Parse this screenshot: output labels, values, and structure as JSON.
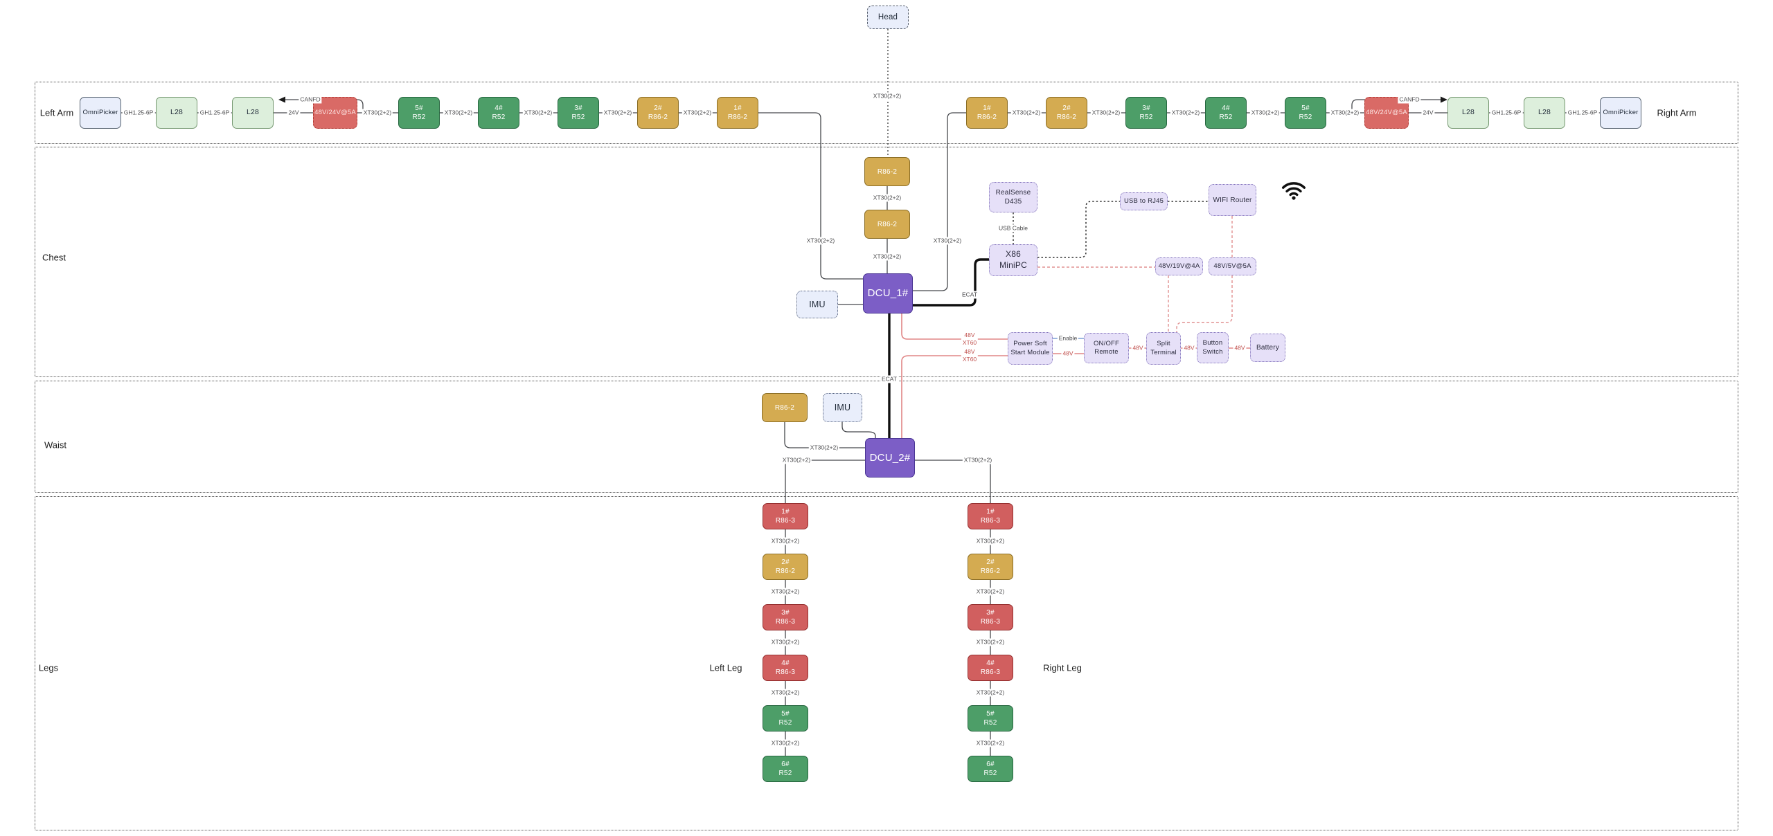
{
  "title": "Robot hardware wiring diagram",
  "palette": {
    "kinds": {
      "green": {
        "bg": "#4d9e68",
        "border": "#26663f",
        "text": "#ffffff"
      },
      "gold": {
        "bg": "#d4ab51",
        "border": "#8a6d25",
        "text": "#ffffff"
      },
      "red": {
        "bg": "#d15f5f",
        "border": "#952f2f",
        "text": "#ffffff"
      },
      "reddash": {
        "bg": "#d96a66",
        "border": "#b03a34",
        "text": "#fde8e6"
      },
      "purple": {
        "bg": "#7c5ec6",
        "border": "#4b3694",
        "text": "#ffffff"
      },
      "lgreen": {
        "bg": "#ddefdc",
        "border": "#74976f",
        "text": "#1f2937"
      },
      "lblue": {
        "bg": "#e9eefb",
        "border": "#54606e",
        "text": "#1f2937"
      },
      "lav": {
        "bg": "#e6e0f8",
        "border": "#7e6eb8",
        "text": "#2b2b3d"
      }
    },
    "lines": {
      "default": "#46484c",
      "thick_ecat": "#101010",
      "power_red": "#e08585",
      "red_label_text": "#c0504d",
      "enable_blue": "#7d9fd6",
      "dotted_data": "#333333"
    }
  },
  "labels": [
    {
      "id": "left-arm",
      "text": "Left Arm"
    },
    {
      "id": "right-arm",
      "text": "Right Arm"
    },
    {
      "id": "chest",
      "text": "Chest"
    },
    {
      "id": "waist",
      "text": "Waist"
    },
    {
      "id": "legs",
      "text": "Legs"
    },
    {
      "id": "left-leg",
      "text": "Left Leg"
    },
    {
      "id": "right-leg",
      "text": "Right Leg"
    }
  ],
  "nodes": [
    {
      "id": "head",
      "label": "Head"
    },
    {
      "id": "omnipicker-l",
      "label": "OmniPicker"
    },
    {
      "id": "l28-l1",
      "label": "L28"
    },
    {
      "id": "l28-l2",
      "label": "L28"
    },
    {
      "id": "conv24-l",
      "label": "48V/24V@5A"
    },
    {
      "id": "r52-l5",
      "label": "5#\nR52"
    },
    {
      "id": "r52-l4",
      "label": "4#\nR52"
    },
    {
      "id": "r52-l3",
      "label": "3#\nR52"
    },
    {
      "id": "r86-l2",
      "label": "2#\nR86-2"
    },
    {
      "id": "r86-l1",
      "label": "1#\nR86-2"
    },
    {
      "id": "r86-r1",
      "label": "1#\nR86-2"
    },
    {
      "id": "r86-r2",
      "label": "2#\nR86-2"
    },
    {
      "id": "r52-r3",
      "label": "3#\nR52"
    },
    {
      "id": "r52-r4",
      "label": "4#\nR52"
    },
    {
      "id": "r52-r5",
      "label": "5#\nR52"
    },
    {
      "id": "conv24-r",
      "label": "48V/24V@5A"
    },
    {
      "id": "l28-r1",
      "label": "L28"
    },
    {
      "id": "l28-r2",
      "label": "L28"
    },
    {
      "id": "omnipicker-r",
      "label": "OmniPicker"
    },
    {
      "id": "r86-c1",
      "label": "R86-2"
    },
    {
      "id": "r86-c2",
      "label": "R86-2"
    },
    {
      "id": "dcu1",
      "label": "DCU_1#"
    },
    {
      "id": "imu-chest",
      "label": "IMU"
    },
    {
      "id": "realsense",
      "label": "RealSense\nD435"
    },
    {
      "id": "x86",
      "label": "X86\nMiniPC"
    },
    {
      "id": "usb2rj45",
      "label": "USB to RJ45"
    },
    {
      "id": "wifirouter",
      "label": "WIFI Router"
    },
    {
      "id": "conv19",
      "label": "48V/19V@4A"
    },
    {
      "id": "conv5",
      "label": "48V/5V@5A"
    },
    {
      "id": "psm",
      "label": "Power Soft\nStart Module"
    },
    {
      "id": "onoff",
      "label": "ON/OFF\nRemote"
    },
    {
      "id": "split",
      "label": "Split\nTerminal"
    },
    {
      "id": "btnswitch",
      "label": "Button\nSwitch"
    },
    {
      "id": "battery",
      "label": "Battery"
    },
    {
      "id": "r86-w",
      "label": "R86-2"
    },
    {
      "id": "imu-waist",
      "label": "IMU"
    },
    {
      "id": "dcu2",
      "label": "DCU_2#"
    },
    {
      "id": "ll1",
      "label": "1#\nR86-3"
    },
    {
      "id": "ll2",
      "label": "2#\nR86-2"
    },
    {
      "id": "ll3",
      "label": "3#\nR86-3"
    },
    {
      "id": "ll4",
      "label": "4#\nR86-3"
    },
    {
      "id": "ll5",
      "label": "5#\nR52"
    },
    {
      "id": "ll6",
      "label": "6#\nR52"
    },
    {
      "id": "rl1",
      "label": "1#\nR86-3"
    },
    {
      "id": "rl2",
      "label": "2#\nR86-2"
    },
    {
      "id": "rl3",
      "label": "3#\nR86-3"
    },
    {
      "id": "rl4",
      "label": "4#\nR86-3"
    },
    {
      "id": "rl5",
      "label": "5#\nR52"
    },
    {
      "id": "rl6",
      "label": "6#\nR52"
    }
  ],
  "edge_labels": [
    {
      "id": "a1",
      "text": "GH1.25-6P"
    },
    {
      "id": "a2",
      "text": "GH1.25-6P"
    },
    {
      "id": "a3",
      "text": "24V"
    },
    {
      "id": "a4",
      "text": "XT30(2+2)"
    },
    {
      "id": "a5",
      "text": "XT30(2+2)"
    },
    {
      "id": "a6",
      "text": "XT30(2+2)"
    },
    {
      "id": "a7",
      "text": "XT30(2+2)"
    },
    {
      "id": "a8",
      "text": "XT30(2+2)"
    },
    {
      "id": "canfdl",
      "text": "CANFD"
    },
    {
      "id": "b1",
      "text": "XT30(2+2)"
    },
    {
      "id": "b2",
      "text": "XT30(2+2)"
    },
    {
      "id": "b3",
      "text": "XT30(2+2)"
    },
    {
      "id": "b4",
      "text": "XT30(2+2)"
    },
    {
      "id": "b5",
      "text": "XT30(2+2)"
    },
    {
      "id": "b6",
      "text": "24V"
    },
    {
      "id": "b7",
      "text": "GH1.25-6P"
    },
    {
      "id": "b8",
      "text": "GH1.25-6P"
    },
    {
      "id": "canfdr",
      "text": "CANFD"
    },
    {
      "id": "headxt",
      "text": "XT30(2+2)"
    },
    {
      "id": "c1",
      "text": "XT30(2+2)"
    },
    {
      "id": "c2",
      "text": "XT30(2+2)"
    },
    {
      "id": "fl",
      "text": "XT30(2+2)"
    },
    {
      "id": "fr",
      "text": "XT30(2+2)"
    },
    {
      "id": "ecat1",
      "text": "ECAT"
    },
    {
      "id": "ecat2",
      "text": "ECAT"
    },
    {
      "id": "usbcable",
      "text": "USB Cable"
    },
    {
      "id": "ra",
      "text": "48V\nXT60",
      "tone": "red"
    },
    {
      "id": "rb",
      "text": "48V\nXT60",
      "tone": "red"
    },
    {
      "id": "enable",
      "text": "Enable"
    },
    {
      "id": "p1",
      "text": "48V",
      "tone": "red"
    },
    {
      "id": "p2",
      "text": "48V",
      "tone": "red"
    },
    {
      "id": "p3",
      "text": "48V",
      "tone": "red"
    },
    {
      "id": "p4",
      "text": "48V",
      "tone": "red"
    },
    {
      "id": "w1",
      "text": "XT30(2+2)"
    },
    {
      "id": "w2",
      "text": "XT30(2+2)"
    },
    {
      "id": "w3",
      "text": "XT30(2+2)"
    },
    {
      "id": "lg1",
      "text": "XT30(2+2)"
    },
    {
      "id": "lg2",
      "text": "XT30(2+2)"
    },
    {
      "id": "lg3",
      "text": "XT30(2+2)"
    },
    {
      "id": "lg4",
      "text": "XT30(2+2)"
    },
    {
      "id": "lg5",
      "text": "XT30(2+2)"
    },
    {
      "id": "rg1",
      "text": "XT30(2+2)"
    },
    {
      "id": "rg2",
      "text": "XT30(2+2)"
    },
    {
      "id": "rg3",
      "text": "XT30(2+2)"
    },
    {
      "id": "rg4",
      "text": "XT30(2+2)"
    },
    {
      "id": "rg5",
      "text": "XT30(2+2)"
    }
  ],
  "icons": {
    "wifi": "wifi-icon"
  }
}
